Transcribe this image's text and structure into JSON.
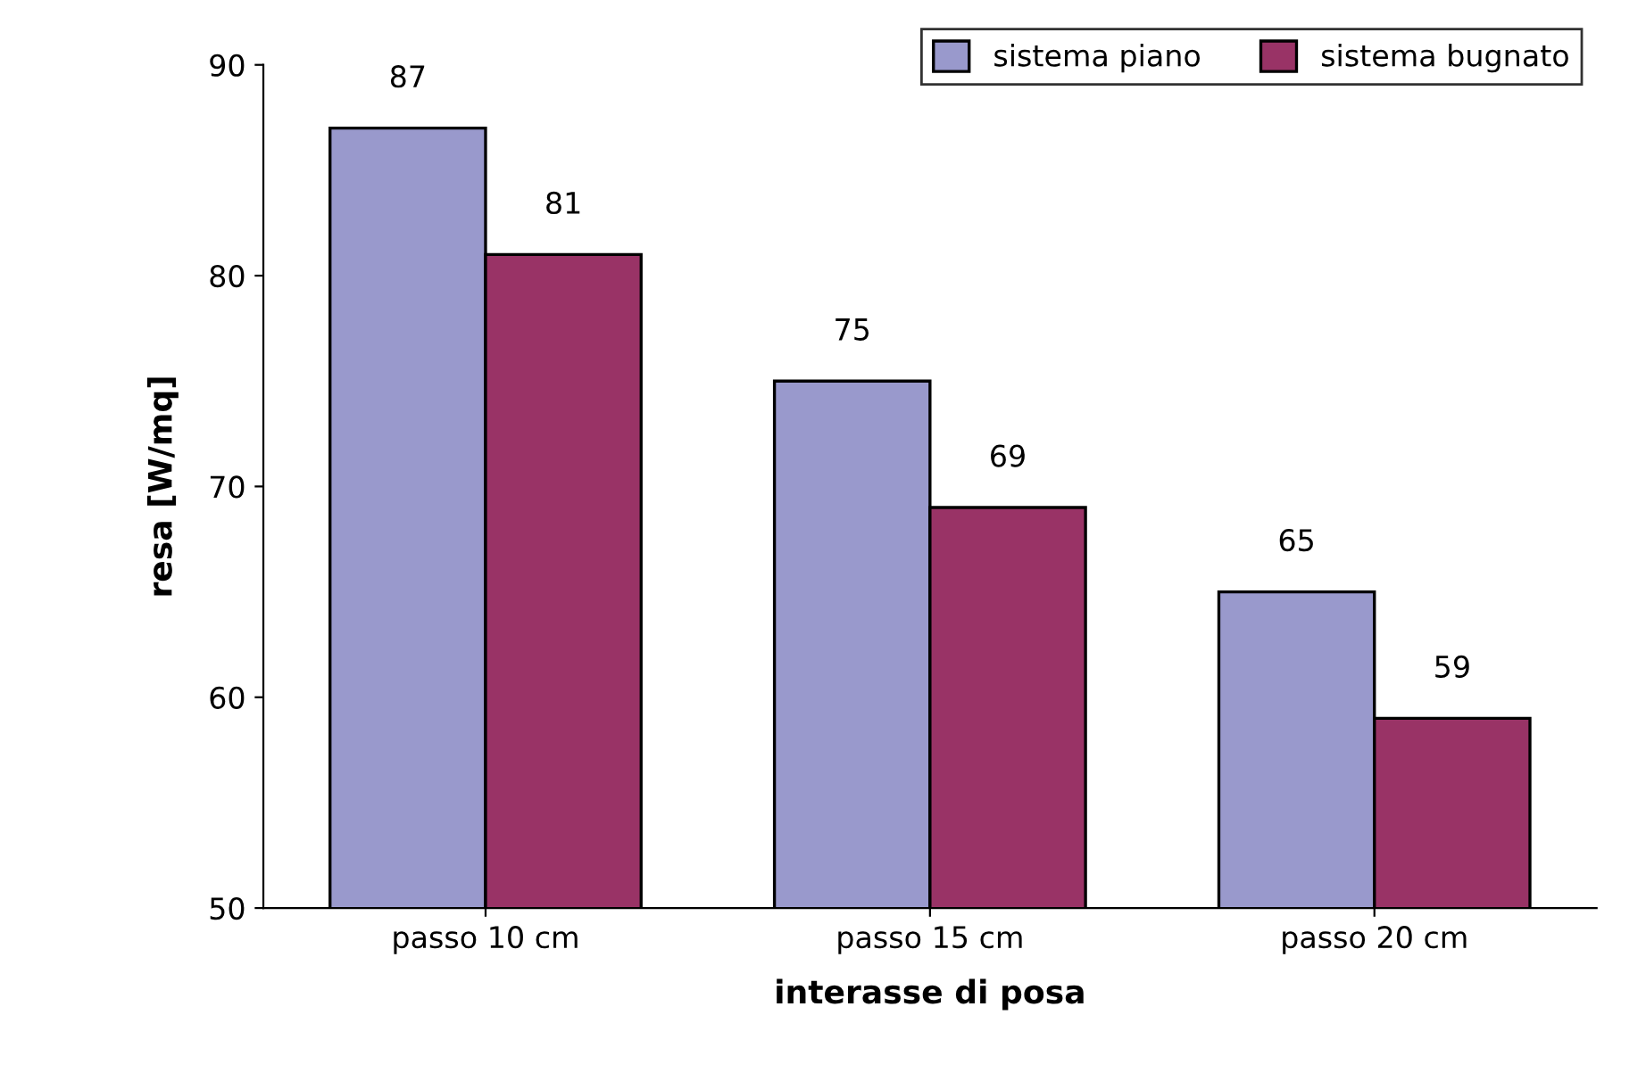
{
  "chart_data": {
    "type": "bar",
    "xlabel": "interasse di posa",
    "ylabel": "resa [W/mq]",
    "categories": [
      "passo 10 cm",
      "passo 15 cm",
      "passo 20 cm"
    ],
    "series": [
      {
        "name": "sistema piano",
        "color": "#9999cc",
        "values": [
          87,
          75,
          65
        ]
      },
      {
        "name": "sistema bugnato",
        "color": "#993366",
        "values": [
          81,
          69,
          59
        ]
      }
    ],
    "ylim": [
      50,
      90
    ],
    "yticks": [
      50,
      60,
      70,
      80,
      90
    ],
    "data_labels": true,
    "legend": "top right",
    "grid": false
  }
}
